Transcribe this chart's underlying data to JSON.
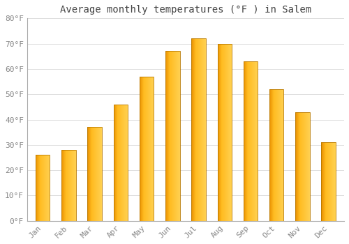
{
  "title": "Average monthly temperatures (°F ) in Salem",
  "months": [
    "Jan",
    "Feb",
    "Mar",
    "Apr",
    "May",
    "Jun",
    "Jul",
    "Aug",
    "Sep",
    "Oct",
    "Nov",
    "Dec"
  ],
  "values": [
    26,
    28,
    37,
    46,
    57,
    67,
    72,
    70,
    63,
    52,
    43,
    31
  ],
  "ylim": [
    0,
    80
  ],
  "yticks": [
    0,
    10,
    20,
    30,
    40,
    50,
    60,
    70,
    80
  ],
  "ytick_labels": [
    "0°F",
    "10°F",
    "20°F",
    "30°F",
    "40°F",
    "50°F",
    "60°F",
    "70°F",
    "80°F"
  ],
  "background_color": "#FFFFFF",
  "plot_bg_color": "#FFFFFF",
  "grid_color": "#DDDDDD",
  "title_fontsize": 10,
  "tick_fontsize": 8,
  "title_color": "#444444",
  "tick_color": "#888888",
  "bar_width": 0.55,
  "bar_color_left": "#E89000",
  "bar_color_mid": "#FFBB20",
  "bar_color_right": "#FFD050",
  "bar_edge_color": "#B87800",
  "num_grad": 80
}
